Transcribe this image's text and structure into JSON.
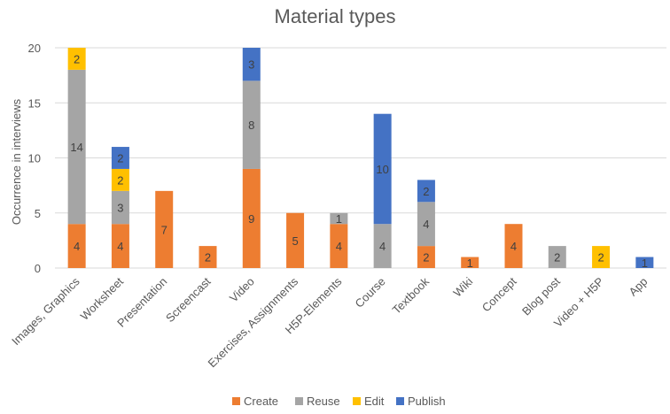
{
  "chart_data": {
    "type": "bar",
    "stacked": true,
    "title": "Material types",
    "ylabel": "Occurrence in interviews",
    "xlabel": "",
    "ylim": [
      0,
      20
    ],
    "yticks": [
      0,
      5,
      10,
      15,
      20
    ],
    "grid": true,
    "legend_position": "bottom",
    "categories": [
      "Images, Graphics",
      "Worksheet",
      "Presentation",
      "Screencast",
      "Video",
      "Exercises, Assignments",
      "H5P-Elements",
      "Course",
      "Textbook",
      "Wiki",
      "Concept",
      "Blog post",
      "Video + H5P",
      "App"
    ],
    "series": [
      {
        "name": "Create",
        "color": "#ed7d31",
        "values": [
          4,
          4,
          7,
          2,
          9,
          5,
          4,
          0,
          2,
          1,
          4,
          0,
          0,
          0
        ]
      },
      {
        "name": "Reuse",
        "color": "#a5a5a5",
        "values": [
          14,
          3,
          0,
          0,
          8,
          0,
          1,
          4,
          4,
          0,
          0,
          2,
          0,
          0
        ]
      },
      {
        "name": "Edit",
        "color": "#ffc000",
        "values": [
          2,
          2,
          0,
          0,
          0,
          0,
          0,
          0,
          0,
          0,
          0,
          0,
          2,
          0
        ]
      },
      {
        "name": "Publish",
        "color": "#4472c4",
        "values": [
          0,
          2,
          0,
          0,
          3,
          0,
          0,
          10,
          2,
          0,
          0,
          0,
          0,
          1
        ]
      }
    ]
  }
}
